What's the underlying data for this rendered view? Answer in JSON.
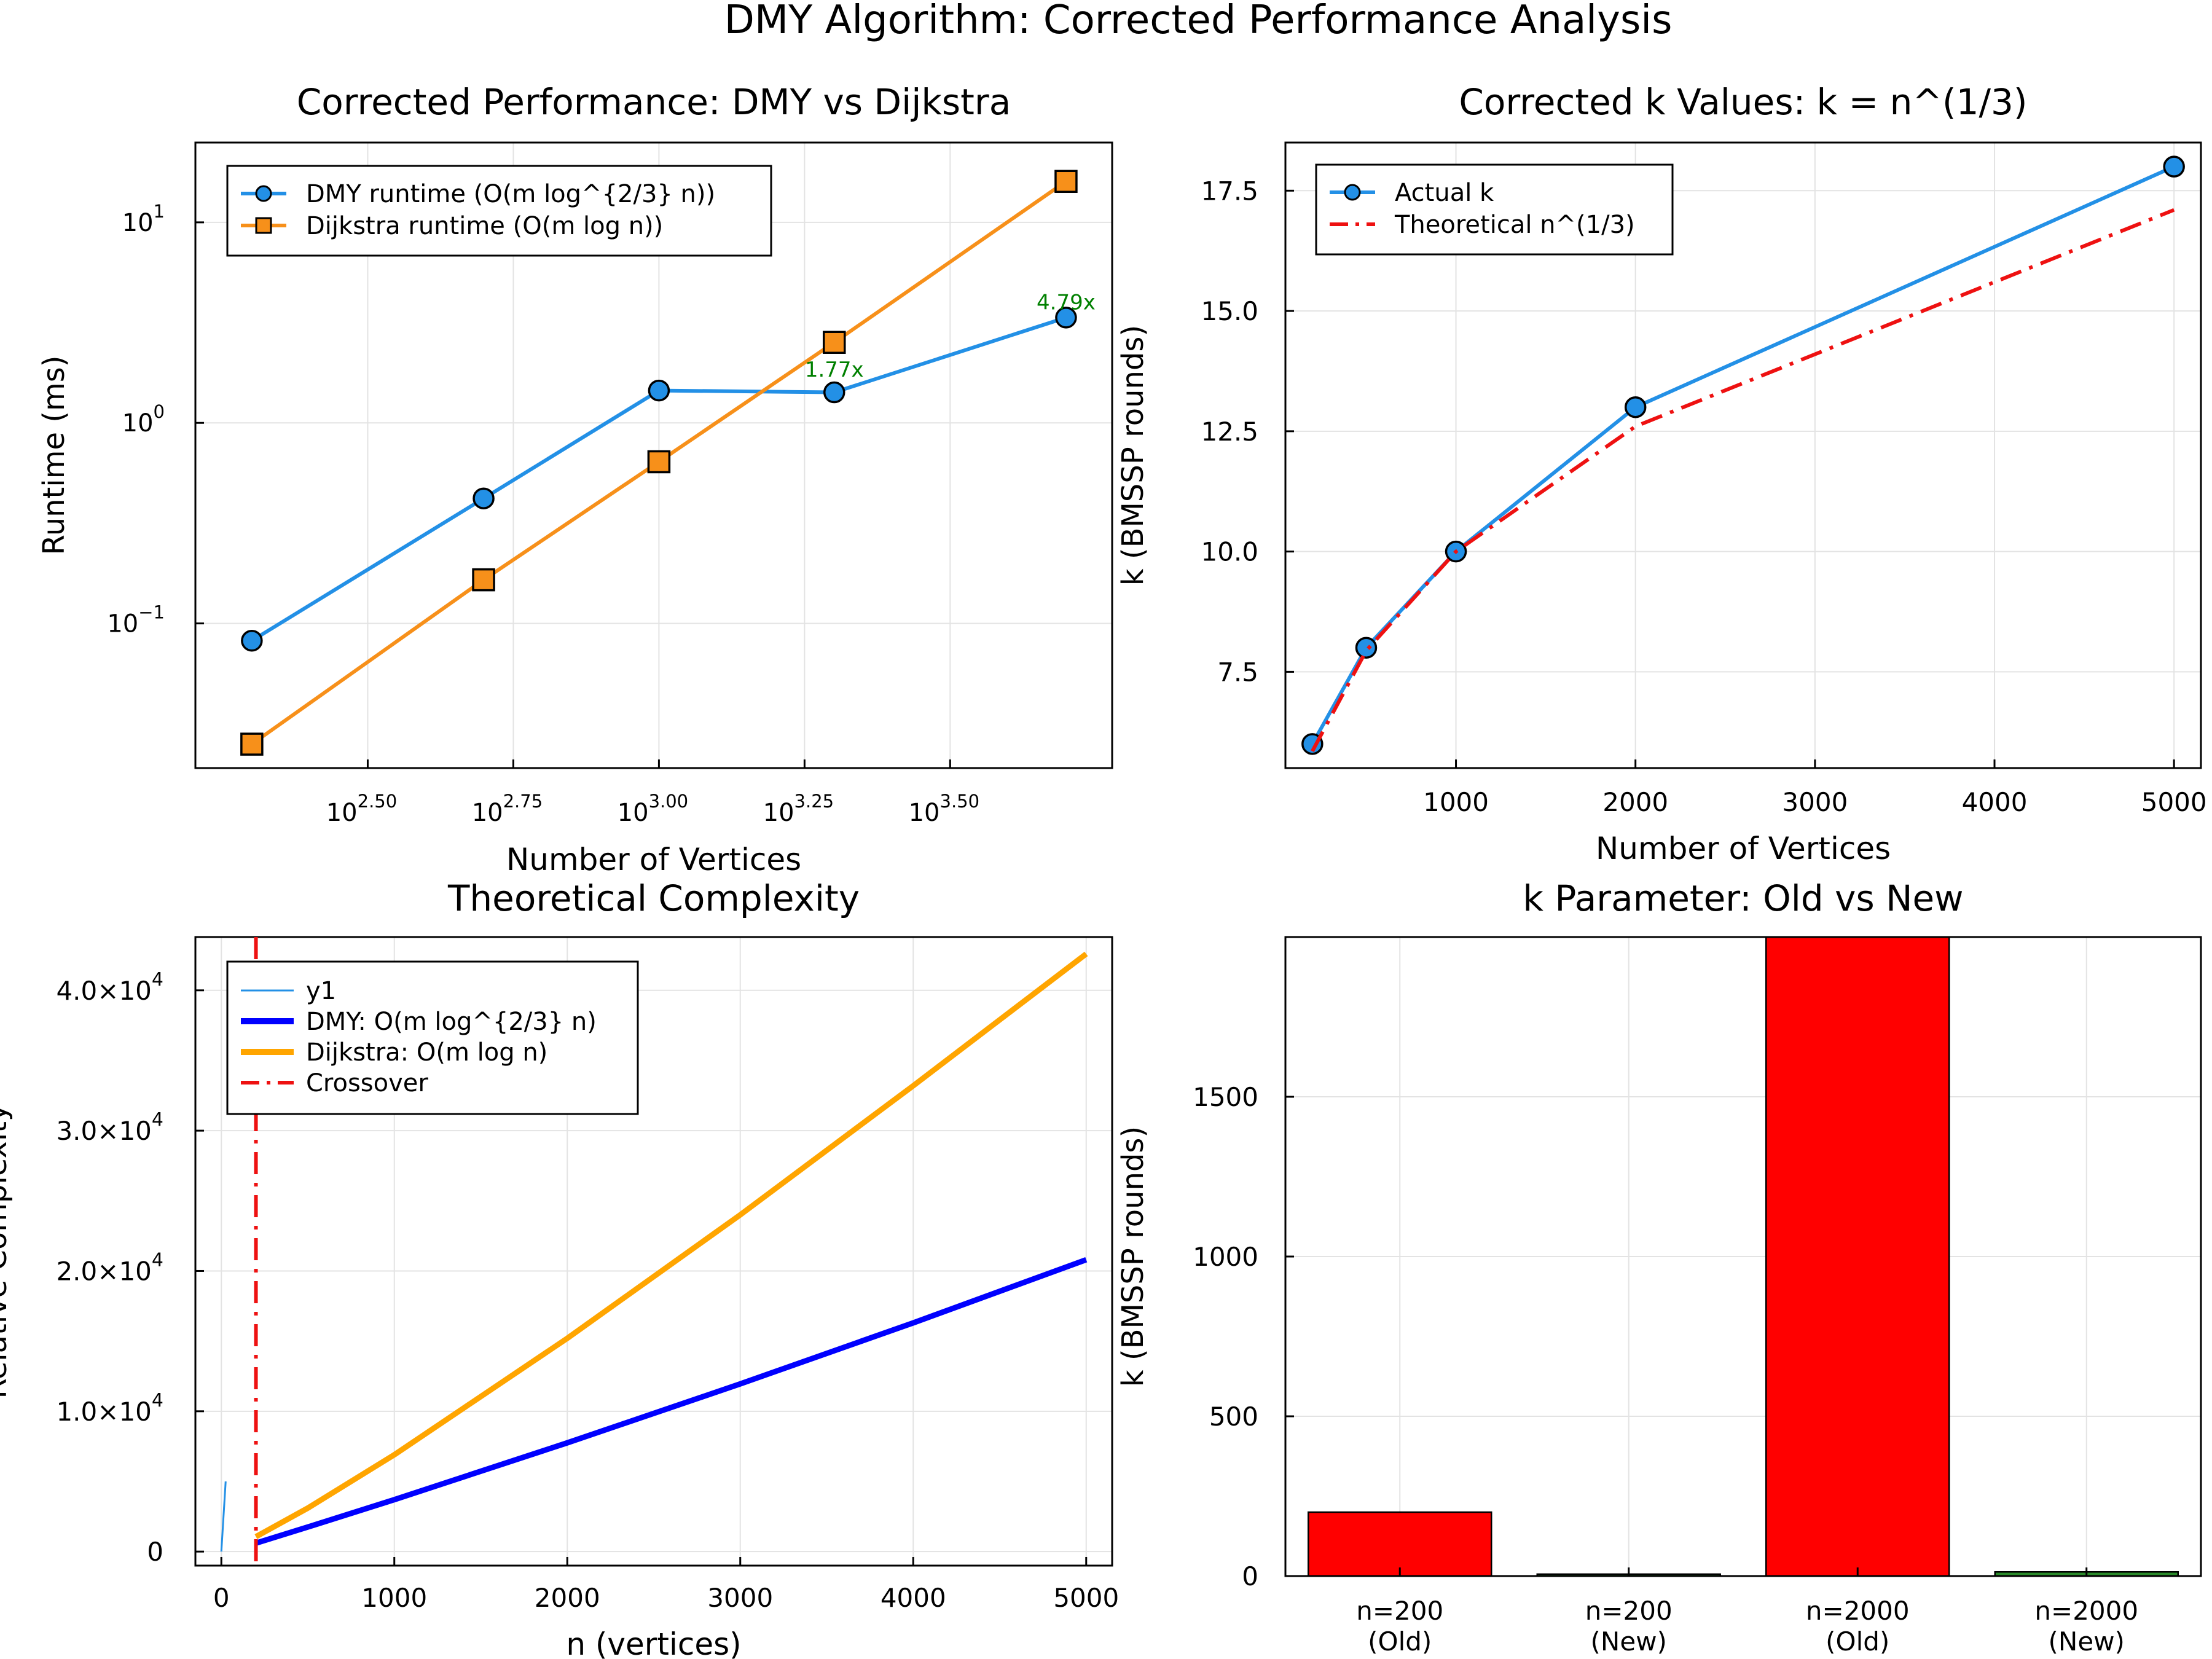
{
  "figure": {
    "title": "DMY Algorithm: Corrected Performance Analysis"
  },
  "chart_data": [
    {
      "type": "line",
      "title": "Corrected Performance: DMY vs Dijkstra",
      "xlabel": "Number of Vertices",
      "ylabel": "Runtime (ms)",
      "xscale": "log10",
      "yscale": "log10",
      "xlim": [
        160,
        6000
      ],
      "ylim": [
        0.019,
        25
      ],
      "grid": true,
      "legend_position": "top-left",
      "xticks": [
        {
          "base": "10",
          "exp": "2.50",
          "value": 316.23
        },
        {
          "base": "10",
          "exp": "2.75",
          "value": 562.34
        },
        {
          "base": "10",
          "exp": "3.00",
          "value": 1000
        },
        {
          "base": "10",
          "exp": "3.25",
          "value": 1778.28
        },
        {
          "base": "10",
          "exp": "3.50",
          "value": 3162.28
        }
      ],
      "yticks": [
        {
          "base": "10",
          "exp": "−1",
          "value": 0.1
        },
        {
          "base": "10",
          "exp": "0",
          "value": 1
        },
        {
          "base": "10",
          "exp": "1",
          "value": 10
        }
      ],
      "series": [
        {
          "name": "DMY runtime (O(m log^{2/3} n))",
          "color": "#2390e6",
          "marker": "circle",
          "x": [
            200,
            500,
            1000,
            2000,
            5000
          ],
          "y": [
            0.082,
            0.42,
            1.45,
            1.42,
            3.35
          ]
        },
        {
          "name": "Dijkstra runtime (O(m log n))",
          "color": "#f7901a",
          "marker": "square",
          "x": [
            200,
            500,
            1000,
            2000,
            5000
          ],
          "y": [
            0.025,
            0.165,
            0.64,
            2.52,
            16.0
          ]
        }
      ],
      "annotations": [
        {
          "text": "1.77x",
          "x": 2000,
          "y": 1.85,
          "color": "#008000"
        },
        {
          "text": "4.79x",
          "x": 5000,
          "y": 4.0,
          "color": "#008000"
        }
      ]
    },
    {
      "type": "line",
      "title": "Corrected k Values: k = n^(1/3)",
      "xlabel": "Number of Vertices",
      "ylabel": "k (BMSSP rounds)",
      "xlim": [
        50,
        5150
      ],
      "ylim": [
        5.5,
        18.5
      ],
      "grid": true,
      "legend_position": "top-left",
      "xticks": [
        1000,
        2000,
        3000,
        4000,
        5000
      ],
      "yticks": [
        {
          "label": "7.5",
          "value": 7.5
        },
        {
          "label": "10.0",
          "value": 10.0
        },
        {
          "label": "12.5",
          "value": 12.5
        },
        {
          "label": "15.0",
          "value": 15.0
        },
        {
          "label": "17.5",
          "value": 17.5
        }
      ],
      "series": [
        {
          "name": "Actual k",
          "color": "#2390e6",
          "marker": "circle",
          "dash": "solid",
          "x": [
            200,
            500,
            1000,
            2000,
            5000
          ],
          "y": [
            6,
            8,
            10,
            13,
            18
          ]
        },
        {
          "name": "Theoretical n^(1/3)",
          "color": "#ee1111",
          "marker": "none",
          "dash": "dashdot",
          "x": [
            200,
            500,
            1000,
            2000,
            5000
          ],
          "y": [
            5.85,
            7.94,
            10.0,
            12.6,
            17.1
          ]
        }
      ]
    },
    {
      "type": "line",
      "title": "Theoretical Complexity",
      "xlabel": "n (vertices)",
      "ylabel": "Relative Complexity",
      "xlim": [
        -150,
        5150
      ],
      "ylim": [
        -1000,
        43800
      ],
      "grid": true,
      "legend_position": "top-left",
      "xticks": [
        0,
        1000,
        2000,
        3000,
        4000,
        5000
      ],
      "yticks": [
        {
          "label": "0",
          "value": 0
        },
        {
          "mant": "1.0",
          "base": "10",
          "exp": "4",
          "value": 10000
        },
        {
          "mant": "2.0",
          "base": "10",
          "exp": "4",
          "value": 20000
        },
        {
          "mant": "3.0",
          "base": "10",
          "exp": "4",
          "value": 30000
        },
        {
          "mant": "4.0",
          "base": "10",
          "exp": "4",
          "value": 40000
        }
      ],
      "series": [
        {
          "name": "y1",
          "color": "#2390e6",
          "width": "thin",
          "x": [
            0,
            25
          ],
          "y": [
            0,
            5000
          ]
        },
        {
          "name": "DMY: O(m log^{2/3} n)",
          "color": "#0000ff",
          "width": "thick",
          "x": [
            200,
            500,
            1000,
            2000,
            3000,
            4000,
            5000
          ],
          "y": [
            600,
            1750,
            3700,
            7750,
            11950,
            16300,
            20800
          ]
        },
        {
          "name": "Dijkstra: O(m log n)",
          "color": "#ffa500",
          "width": "thick",
          "x": [
            200,
            500,
            1000,
            2000,
            3000,
            4000,
            5000
          ],
          "y": [
            1060,
            3100,
            6900,
            15200,
            24000,
            33200,
            42600
          ]
        },
        {
          "name": "Crossover",
          "color": "#ee1111",
          "width": "dashed",
          "vline": 200
        }
      ]
    },
    {
      "type": "bar",
      "title": "k Parameter: Old vs New",
      "xlabel": "",
      "ylabel": "k (BMSSP rounds)",
      "ylim": [
        0,
        2000
      ],
      "grid": true,
      "categories": [
        {
          "line1": "n=200",
          "line2": "(Old)"
        },
        {
          "line1": "n=200",
          "line2": "(New)"
        },
        {
          "line1": "n=2000",
          "line2": "(Old)"
        },
        {
          "line1": "n=2000",
          "line2": "(New)"
        }
      ],
      "values": [
        200,
        6,
        2000,
        13
      ],
      "colors": [
        "#ff0000",
        "#2a8a2a",
        "#ff0000",
        "#2a8a2a"
      ],
      "yticks": [
        {
          "label": "0",
          "value": 0
        },
        {
          "label": "500",
          "value": 500
        },
        {
          "label": "1000",
          "value": 1000
        },
        {
          "label": "1500",
          "value": 1500
        }
      ]
    }
  ]
}
